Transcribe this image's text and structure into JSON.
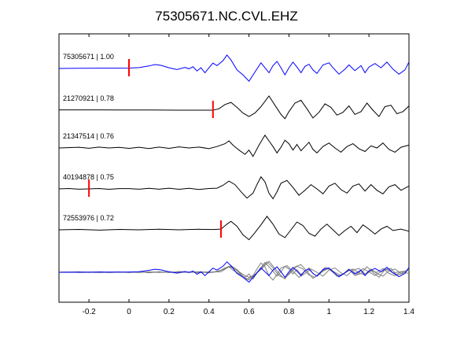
{
  "chart_data": {
    "type": "line",
    "title": "75305671.NC.CVL.EHZ",
    "xlabel": "",
    "ylabel": "",
    "xlim": [
      -0.35,
      1.4
    ],
    "xticks": [
      -0.2,
      0,
      0.2,
      0.4,
      0.6,
      0.8,
      1,
      1.2,
      1.4
    ],
    "xtick_labels": [
      "-0.2",
      "0",
      "0.2",
      "0.4",
      "0.6",
      "0.8",
      "1",
      "1.2",
      "1.4"
    ],
    "grid": false,
    "legend": "none",
    "colors": {
      "master": "#0000ff",
      "trace": "#000000",
      "overlay": "#808080",
      "pick": "#ff0000"
    },
    "series": [
      {
        "label": "75305671 | 1.00",
        "color": "#0000ff",
        "pick": 0.0,
        "points": [
          [
            -0.35,
            0
          ],
          [
            -0.25,
            0.01
          ],
          [
            -0.15,
            0.02
          ],
          [
            -0.05,
            0.02
          ],
          [
            0.0,
            0.03
          ],
          [
            0.05,
            0.06
          ],
          [
            0.1,
            0.18
          ],
          [
            0.13,
            0.28
          ],
          [
            0.16,
            0.22
          ],
          [
            0.2,
            0.05
          ],
          [
            0.24,
            -0.08
          ],
          [
            0.28,
            0.08
          ],
          [
            0.3,
            -0.02
          ],
          [
            0.32,
            0.12
          ],
          [
            0.34,
            -0.18
          ],
          [
            0.36,
            0.05
          ],
          [
            0.38,
            -0.3
          ],
          [
            0.4,
            0.05
          ],
          [
            0.42,
            0.38
          ],
          [
            0.44,
            0.2
          ],
          [
            0.47,
            0.55
          ],
          [
            0.49,
            0.95
          ],
          [
            0.51,
            0.6
          ],
          [
            0.54,
            -0.1
          ],
          [
            0.57,
            -0.45
          ],
          [
            0.6,
            -0.9
          ],
          [
            0.63,
            -0.25
          ],
          [
            0.66,
            0.4
          ],
          [
            0.68,
            0.05
          ],
          [
            0.7,
            -0.3
          ],
          [
            0.72,
            0.2
          ],
          [
            0.74,
            0.5
          ],
          [
            0.76,
            0.05
          ],
          [
            0.78,
            -0.45
          ],
          [
            0.8,
            0.05
          ],
          [
            0.82,
            0.45
          ],
          [
            0.84,
            0.1
          ],
          [
            0.86,
            -0.3
          ],
          [
            0.88,
            0.15
          ],
          [
            0.9,
            0.3
          ],
          [
            0.92,
            -0.1
          ],
          [
            0.94,
            -0.35
          ],
          [
            0.97,
            0.25
          ],
          [
            1.0,
            0.4
          ],
          [
            1.02,
            0.05
          ],
          [
            1.05,
            -0.4
          ],
          [
            1.08,
            -0.05
          ],
          [
            1.1,
            0.25
          ],
          [
            1.13,
            -0.15
          ],
          [
            1.16,
            0.2
          ],
          [
            1.18,
            -0.3
          ],
          [
            1.2,
            0.1
          ],
          [
            1.23,
            0.35
          ],
          [
            1.26,
            0.05
          ],
          [
            1.29,
            0.45
          ],
          [
            1.32,
            -0.05
          ],
          [
            1.35,
            -0.4
          ],
          [
            1.38,
            -0.1
          ],
          [
            1.4,
            0.45
          ]
        ]
      },
      {
        "label": "21270921 | 0.78",
        "color": "#000000",
        "pick": 0.42,
        "points": [
          [
            -0.35,
            0.02
          ],
          [
            -0.2,
            0.02
          ],
          [
            -0.05,
            0.01
          ],
          [
            0.1,
            0.01
          ],
          [
            0.25,
            0.0
          ],
          [
            0.35,
            0.0
          ],
          [
            0.42,
            0.0
          ],
          [
            0.45,
            0.1
          ],
          [
            0.48,
            0.4
          ],
          [
            0.51,
            0.55
          ],
          [
            0.54,
            0.2
          ],
          [
            0.57,
            -0.2
          ],
          [
            0.6,
            -0.45
          ],
          [
            0.63,
            -0.2
          ],
          [
            0.66,
            0.25
          ],
          [
            0.7,
            1.0
          ],
          [
            0.73,
            0.35
          ],
          [
            0.76,
            -0.3
          ],
          [
            0.78,
            -0.6
          ],
          [
            0.8,
            -0.1
          ],
          [
            0.83,
            0.5
          ],
          [
            0.86,
            0.7
          ],
          [
            0.89,
            0.1
          ],
          [
            0.92,
            -0.55
          ],
          [
            0.95,
            -0.15
          ],
          [
            0.98,
            0.45
          ],
          [
            1.01,
            0.2
          ],
          [
            1.04,
            -0.35
          ],
          [
            1.07,
            -0.15
          ],
          [
            1.1,
            0.3
          ],
          [
            1.13,
            -0.3
          ],
          [
            1.16,
            -0.1
          ],
          [
            1.19,
            0.5
          ],
          [
            1.22,
            0.0
          ],
          [
            1.25,
            -0.45
          ],
          [
            1.28,
            0.25
          ],
          [
            1.31,
            0.35
          ],
          [
            1.34,
            -0.25
          ],
          [
            1.37,
            -0.1
          ],
          [
            1.4,
            0.3
          ]
        ]
      },
      {
        "label": "21347514 | 0.76",
        "color": "#000000",
        "pick": null,
        "points": [
          [
            -0.35,
            0.0
          ],
          [
            -0.25,
            0.05
          ],
          [
            -0.2,
            -0.02
          ],
          [
            -0.15,
            0.06
          ],
          [
            -0.1,
            0.0
          ],
          [
            -0.05,
            0.04
          ],
          [
            0.0,
            -0.03
          ],
          [
            0.05,
            0.05
          ],
          [
            0.1,
            -0.04
          ],
          [
            0.15,
            0.06
          ],
          [
            0.2,
            -0.03
          ],
          [
            0.25,
            0.08
          ],
          [
            0.3,
            0.0
          ],
          [
            0.35,
            0.06
          ],
          [
            0.4,
            -0.05
          ],
          [
            0.44,
            0.1
          ],
          [
            0.48,
            0.3
          ],
          [
            0.5,
            0.5
          ],
          [
            0.52,
            0.2
          ],
          [
            0.55,
            -0.15
          ],
          [
            0.58,
            -0.45
          ],
          [
            0.6,
            -0.15
          ],
          [
            0.62,
            -0.6
          ],
          [
            0.65,
            0.2
          ],
          [
            0.68,
            0.9
          ],
          [
            0.7,
            0.5
          ],
          [
            0.72,
            0.1
          ],
          [
            0.74,
            -0.35
          ],
          [
            0.76,
            0.05
          ],
          [
            0.78,
            0.55
          ],
          [
            0.8,
            0.3
          ],
          [
            0.82,
            -0.15
          ],
          [
            0.84,
            0.25
          ],
          [
            0.86,
            -0.2
          ],
          [
            0.88,
            0.1
          ],
          [
            0.9,
            0.4
          ],
          [
            0.92,
            -0.1
          ],
          [
            0.94,
            -0.35
          ],
          [
            0.97,
            0.1
          ],
          [
            1.0,
            0.35
          ],
          [
            1.03,
            0.0
          ],
          [
            1.06,
            -0.3
          ],
          [
            1.09,
            0.1
          ],
          [
            1.12,
            0.3
          ],
          [
            1.15,
            -0.05
          ],
          [
            1.18,
            -0.25
          ],
          [
            1.21,
            0.15
          ],
          [
            1.24,
            0.0
          ],
          [
            1.27,
            0.35
          ],
          [
            1.3,
            -0.1
          ],
          [
            1.33,
            -0.3
          ],
          [
            1.36,
            0.05
          ],
          [
            1.4,
            0.2
          ]
        ]
      },
      {
        "label": "40194878 | 0.75",
        "color": "#000000",
        "pick": -0.2,
        "points": [
          [
            -0.35,
            0.0
          ],
          [
            -0.3,
            0.03
          ],
          [
            -0.25,
            -0.02
          ],
          [
            -0.2,
            0.0
          ],
          [
            -0.15,
            0.03
          ],
          [
            -0.1,
            -0.03
          ],
          [
            -0.05,
            0.02
          ],
          [
            0.0,
            0.02
          ],
          [
            0.05,
            -0.02
          ],
          [
            0.1,
            0.04
          ],
          [
            0.15,
            -0.02
          ],
          [
            0.2,
            0.05
          ],
          [
            0.25,
            -0.03
          ],
          [
            0.3,
            0.04
          ],
          [
            0.35,
            -0.04
          ],
          [
            0.4,
            0.03
          ],
          [
            0.44,
            0.05
          ],
          [
            0.47,
            0.25
          ],
          [
            0.5,
            0.55
          ],
          [
            0.53,
            0.3
          ],
          [
            0.56,
            -0.2
          ],
          [
            0.59,
            -0.65
          ],
          [
            0.62,
            -0.3
          ],
          [
            0.64,
            0.3
          ],
          [
            0.66,
            0.85
          ],
          [
            0.68,
            0.5
          ],
          [
            0.7,
            -0.3
          ],
          [
            0.72,
            -0.7
          ],
          [
            0.74,
            -0.2
          ],
          [
            0.76,
            0.4
          ],
          [
            0.79,
            0.6
          ],
          [
            0.82,
            0.1
          ],
          [
            0.85,
            -0.45
          ],
          [
            0.88,
            -0.1
          ],
          [
            0.91,
            0.3
          ],
          [
            0.94,
            0.0
          ],
          [
            0.97,
            -0.35
          ],
          [
            1.0,
            0.2
          ],
          [
            1.03,
            0.4
          ],
          [
            1.06,
            -0.05
          ],
          [
            1.09,
            -0.3
          ],
          [
            1.12,
            0.2
          ],
          [
            1.15,
            0.35
          ],
          [
            1.18,
            -0.15
          ],
          [
            1.21,
            0.3
          ],
          [
            1.24,
            -0.1
          ],
          [
            1.27,
            -0.35
          ],
          [
            1.3,
            0.15
          ],
          [
            1.33,
            0.3
          ],
          [
            1.36,
            -0.1
          ],
          [
            1.4,
            0.2
          ]
        ]
      },
      {
        "label": "72553976 | 0.72",
        "color": "#000000",
        "pick": 0.46,
        "points": [
          [
            -0.35,
            0.0
          ],
          [
            -0.25,
            0.03
          ],
          [
            -0.15,
            -0.02
          ],
          [
            -0.05,
            0.03
          ],
          [
            0.05,
            0.0
          ],
          [
            0.15,
            0.04
          ],
          [
            0.25,
            0.0
          ],
          [
            0.35,
            0.04
          ],
          [
            0.42,
            0.02
          ],
          [
            0.46,
            0.05
          ],
          [
            0.49,
            0.4
          ],
          [
            0.51,
            0.6
          ],
          [
            0.54,
            0.25
          ],
          [
            0.57,
            -0.35
          ],
          [
            0.6,
            -0.7
          ],
          [
            0.63,
            -0.2
          ],
          [
            0.66,
            0.35
          ],
          [
            0.69,
            0.95
          ],
          [
            0.72,
            0.4
          ],
          [
            0.75,
            -0.3
          ],
          [
            0.78,
            -0.55
          ],
          [
            0.81,
            0.0
          ],
          [
            0.84,
            0.55
          ],
          [
            0.87,
            0.3
          ],
          [
            0.9,
            -0.25
          ],
          [
            0.93,
            -0.45
          ],
          [
            0.96,
            0.05
          ],
          [
            0.99,
            0.4
          ],
          [
            1.02,
            0.0
          ],
          [
            1.05,
            -0.4
          ],
          [
            1.08,
            -0.05
          ],
          [
            1.11,
            0.25
          ],
          [
            1.14,
            -0.2
          ],
          [
            1.17,
            0.35
          ],
          [
            1.2,
            0.05
          ],
          [
            1.23,
            -0.3
          ],
          [
            1.26,
            0.05
          ],
          [
            1.29,
            0.25
          ],
          [
            1.32,
            -0.05
          ],
          [
            1.36,
            0.05
          ],
          [
            1.4,
            -0.1
          ]
        ]
      }
    ]
  }
}
